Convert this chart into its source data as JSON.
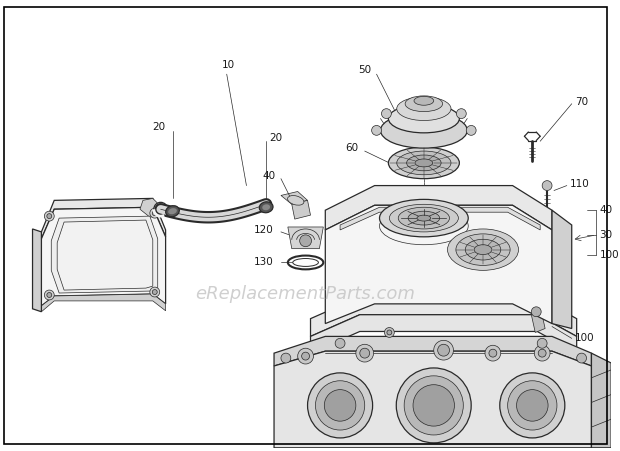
{
  "background_color": "#ffffff",
  "border_color": "#000000",
  "watermark_text": "eReplacementParts.com",
  "watermark_color": "#bbbbbb",
  "watermark_fontsize": 13,
  "fig_width": 6.2,
  "fig_height": 4.51,
  "dpi": 100,
  "line_color": "#2a2a2a",
  "lw_main": 0.9,
  "lw_thin": 0.5,
  "lw_leader": 0.5,
  "label_fontsize": 7.5,
  "label_color": "#1a1a1a"
}
